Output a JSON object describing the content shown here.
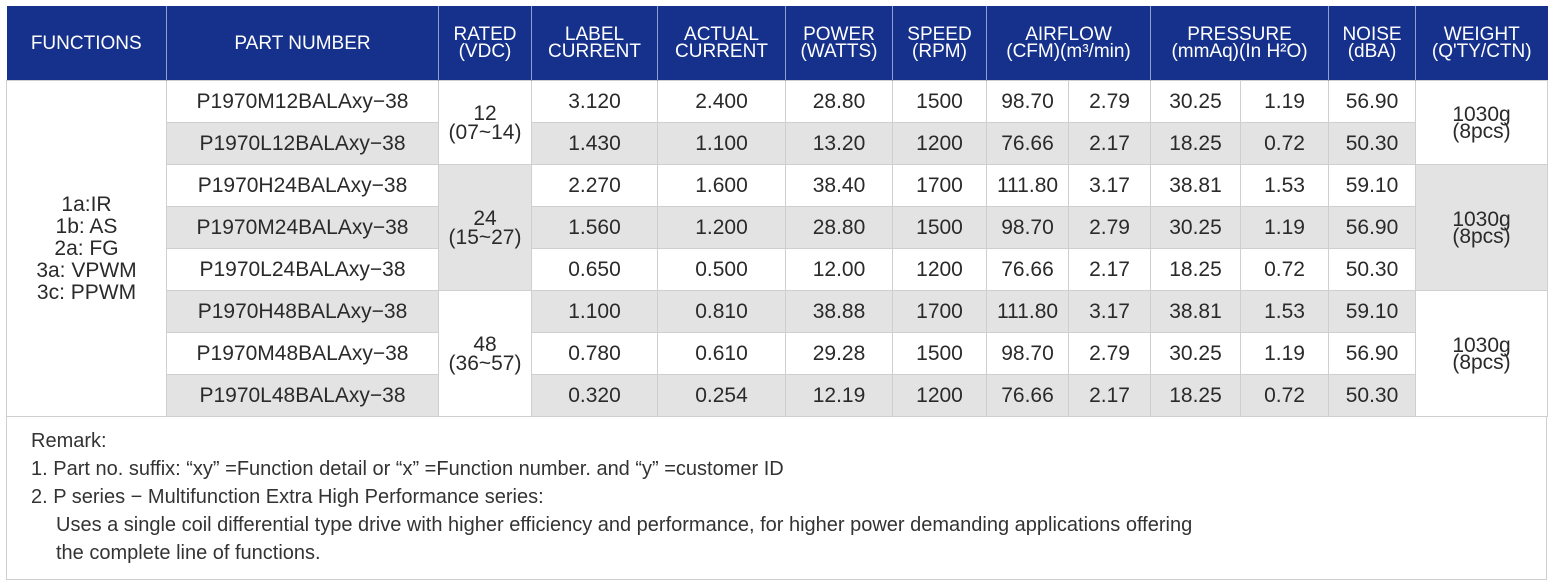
{
  "headers": [
    {
      "lines": [
        "FUNCTIONS"
      ]
    },
    {
      "lines": [
        "PART NUMBER"
      ]
    },
    {
      "lines": [
        "RATED",
        "(VDC)"
      ]
    },
    {
      "lines": [
        "LABEL",
        "CURRENT"
      ]
    },
    {
      "lines": [
        "ACTUAL",
        "CURRENT"
      ]
    },
    {
      "lines": [
        "POWER",
        "(WATTS)"
      ]
    },
    {
      "lines": [
        "SPEED",
        "(RPM)"
      ]
    },
    {
      "lines": [
        "AIRFLOW",
        "(CFM)(m³/min)"
      ]
    },
    {
      "lines": [
        "PRESSURE",
        "(mmAq)(In H²O)"
      ]
    },
    {
      "lines": [
        "NOISE",
        "(dBA)"
      ]
    },
    {
      "lines": [
        "WEIGHT",
        "(Q'TY/CTN)"
      ]
    }
  ],
  "functions": [
    "1a:IR",
    "1b: AS",
    "2a: FG",
    "3a: VPWM",
    "3c: PPWM"
  ],
  "groups": [
    {
      "rated": "12",
      "range": "(07~14)",
      "weight": "1030g",
      "qty": "(8pcs)",
      "rows": [
        {
          "part": "P1970M12BALAxy−38",
          "label_current": "3.120",
          "actual_current": "2.400",
          "power": "28.80",
          "speed": "1500",
          "cfm": "98.70",
          "m3min": "2.79",
          "mmaq": "30.25",
          "inh2o": "1.19",
          "noise": "56.90"
        },
        {
          "part": "P1970L12BALAxy−38",
          "label_current": "1.430",
          "actual_current": "1.100",
          "power": "13.20",
          "speed": "1200",
          "cfm": "76.66",
          "m3min": "2.17",
          "mmaq": "18.25",
          "inh2o": "0.72",
          "noise": "50.30"
        }
      ]
    },
    {
      "rated": "24",
      "range": "(15~27)",
      "weight": "1030g",
      "qty": "(8pcs)",
      "rows": [
        {
          "part": "P1970H24BALAxy−38",
          "label_current": "2.270",
          "actual_current": "1.600",
          "power": "38.40",
          "speed": "1700",
          "cfm": "111.80",
          "m3min": "3.17",
          "mmaq": "38.81",
          "inh2o": "1.53",
          "noise": "59.10"
        },
        {
          "part": "P1970M24BALAxy−38",
          "label_current": "1.560",
          "actual_current": "1.200",
          "power": "28.80",
          "speed": "1500",
          "cfm": "98.70",
          "m3min": "2.79",
          "mmaq": "30.25",
          "inh2o": "1.19",
          "noise": "56.90"
        },
        {
          "part": "P1970L24BALAxy−38",
          "label_current": "0.650",
          "actual_current": "0.500",
          "power": "12.00",
          "speed": "1200",
          "cfm": "76.66",
          "m3min": "2.17",
          "mmaq": "18.25",
          "inh2o": "0.72",
          "noise": "50.30"
        }
      ]
    },
    {
      "rated": "48",
      "range": "(36~57)",
      "weight": "1030g",
      "qty": "(8pcs)",
      "rows": [
        {
          "part": "P1970H48BALAxy−38",
          "label_current": "1.100",
          "actual_current": "0.810",
          "power": "38.88",
          "speed": "1700",
          "cfm": "111.80",
          "m3min": "3.17",
          "mmaq": "38.81",
          "inh2o": "1.53",
          "noise": "59.10"
        },
        {
          "part": "P1970M48BALAxy−38",
          "label_current": "0.780",
          "actual_current": "0.610",
          "power": "29.28",
          "speed": "1500",
          "cfm": "98.70",
          "m3min": "2.79",
          "mmaq": "30.25",
          "inh2o": "1.19",
          "noise": "56.90"
        },
        {
          "part": "P1970L48BALAxy−38",
          "label_current": "0.320",
          "actual_current": "0.254",
          "power": "12.19",
          "speed": "1200",
          "cfm": "76.66",
          "m3min": "2.17",
          "mmaq": "18.25",
          "inh2o": "0.72",
          "noise": "50.30"
        }
      ]
    }
  ],
  "remarks": {
    "title": "Remark:",
    "line1": "1. Part no. suffix: “xy” =Function detail or “x” =Function number. and “y” =customer ID",
    "line2": "2. P series − Multifunction Extra High Performance series:",
    "line3": "Uses a single coil differential type drive with higher efficiency and performance, for higher power demanding applications offering",
    "line4": "the complete line of functions."
  },
  "colors": {
    "header_bg": "#16318c",
    "header_text": "#ffffff",
    "shade": "#e3e3e3",
    "border": "#cfcfcf"
  }
}
